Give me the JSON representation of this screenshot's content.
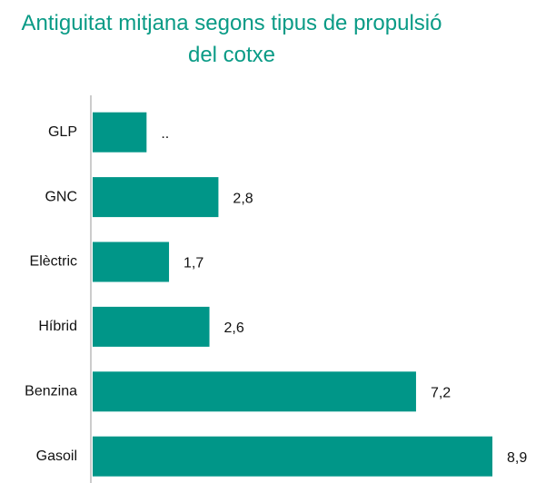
{
  "chart_data": {
    "type": "barh",
    "title": "Antiguitat mitjana segons tipus de propulsió del cotxe",
    "categories": [
      "GLP",
      "GNC",
      "Elèctric",
      "Híbrid",
      "Benzina",
      "Gasoil"
    ],
    "values": [
      1.2,
      2.8,
      1.7,
      2.6,
      7.2,
      8.9
    ],
    "value_labels": [
      "..",
      "2,8",
      "1,7",
      "2,6",
      "7,2",
      "8,9"
    ],
    "color": "#009688"
  }
}
